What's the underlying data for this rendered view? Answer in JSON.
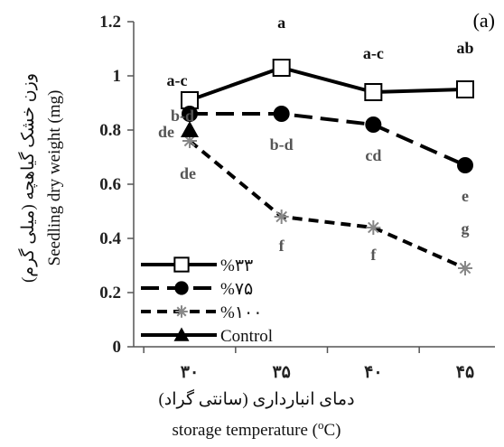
{
  "chart_data": {
    "type": "line",
    "panel_label": "(a)",
    "categories": [
      "۳۰",
      "۳۵",
      "۴۰",
      "۴۵"
    ],
    "y_ticks": [
      "0",
      "0.2",
      "0.4",
      "0.6",
      "0.8",
      "1",
      "1.2"
    ],
    "ylim": [
      0,
      1.2
    ],
    "xlabel_fa": "دمای انبارداری (سانتی گراد)",
    "xlabel_en": "storage temperature (",
    "xlabel_en_sup": "o",
    "xlabel_en_tail": "C)",
    "ylabel_fa": "وزن خشک گیاهچه (میلی گرم)",
    "ylabel_en": "Seedling dry weight (mg)",
    "legend_position": "bottom-left",
    "grid": false,
    "series": [
      {
        "name": "%۳۳",
        "values": [
          0.91,
          1.03,
          0.94,
          0.95
        ],
        "marker": "square",
        "dash": "solid",
        "color": "#000000",
        "labels": [
          "a-c",
          "a",
          "a-c",
          "ab"
        ],
        "label_color": "#111111"
      },
      {
        "name": "%۷۵",
        "values": [
          0.86,
          0.86,
          0.82,
          0.67
        ],
        "marker": "circle",
        "dash": "long-dash",
        "color": "#000000",
        "labels": [
          "b-d",
          "b-d",
          "cd",
          "e"
        ],
        "label_color": "#555555"
      },
      {
        "name": "%۱۰۰",
        "values": [
          0.76,
          0.48,
          0.44,
          0.29
        ],
        "marker": "asterisk",
        "dash": "short-dash",
        "color": "#000000",
        "labels": [
          "de",
          "f",
          "f",
          "g"
        ],
        "label_color": "#555555"
      },
      {
        "name": "Control",
        "values": [
          0.8,
          null,
          null,
          null
        ],
        "marker": "triangle",
        "dash": "solid",
        "color": "#000000",
        "labels": [
          "de",
          null,
          null,
          null
        ],
        "label_color": "#555555"
      }
    ]
  }
}
